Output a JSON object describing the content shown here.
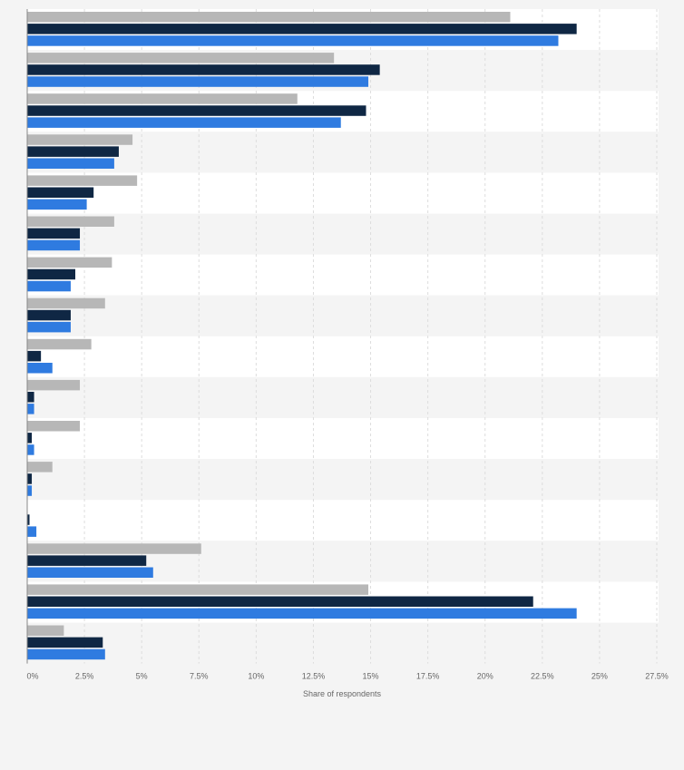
{
  "chart_data": {
    "type": "bar",
    "orientation": "horizontal",
    "xlabel": "Share of respondents",
    "xlim": [
      0,
      27.5
    ],
    "x_ticks": [
      0,
      2.5,
      5,
      7.5,
      10,
      12.5,
      15,
      17.5,
      20,
      22.5,
      25,
      27.5
    ],
    "x_tick_labels": [
      "0%",
      "2.5%",
      "5%",
      "7.5%",
      "10%",
      "12.5%",
      "15%",
      "17.5%",
      "20%",
      "22.5%",
      "25%",
      "27.5%"
    ],
    "grid": true,
    "legend": "none",
    "category_count": 16,
    "series": [
      {
        "color": "#b7b7b7",
        "values": [
          21.1,
          13.4,
          11.8,
          4.6,
          4.8,
          3.8,
          3.7,
          3.4,
          2.8,
          2.3,
          2.3,
          1.1,
          0,
          7.6,
          14.9,
          1.6
        ]
      },
      {
        "color": "#0f2744",
        "values": [
          24.0,
          15.4,
          14.8,
          4.0,
          2.9,
          2.3,
          2.1,
          1.9,
          0.6,
          0.3,
          0.2,
          0.2,
          0.1,
          5.2,
          22.1,
          3.3
        ]
      },
      {
        "color": "#2f7be0",
        "values": [
          23.2,
          14.9,
          13.7,
          3.8,
          2.6,
          2.3,
          1.9,
          1.9,
          1.1,
          0.3,
          0.3,
          0.2,
          0.4,
          5.5,
          24.0,
          3.4
        ]
      }
    ],
    "colors": {
      "band_light": "#ffffff",
      "band_dark": "#f4f4f4",
      "grid": "#dddddd",
      "axis": "#888888"
    }
  }
}
